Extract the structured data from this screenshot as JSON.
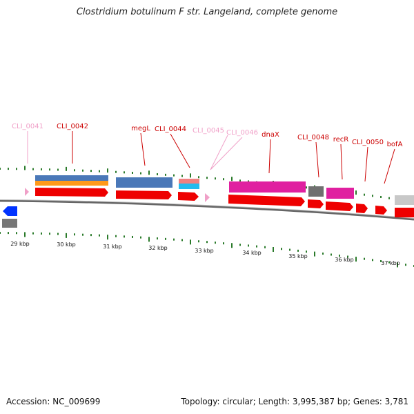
{
  "title": "Clostridium botulinum F str. Langeland, complete genome",
  "accession": "Accession: NC_009699",
  "summary": "Topology: circular; Length: 3,995,387 bp; Genes: 3,781",
  "colors": {
    "backbone": "#888888",
    "cds": "#ff0000",
    "pseudo_label": "#f0a0c8",
    "label": "#cc0000",
    "tick": "#2a7a2a",
    "blue_strand": "#0000ff",
    "gray_feature": "#777777"
  },
  "scale": {
    "unit": "kbp",
    "ticks": [
      {
        "label": "29 kbp"
      },
      {
        "label": "30 kbp"
      },
      {
        "label": "31 kbp"
      },
      {
        "label": "32 kbp"
      },
      {
        "label": "33 kbp"
      },
      {
        "label": "34 kbp"
      },
      {
        "label": "35 kbp"
      },
      {
        "label": "36 kbp"
      },
      {
        "label": "37 kbp"
      }
    ]
  },
  "genes": [
    {
      "label": "CLI_0041",
      "pseudo": true
    },
    {
      "label": "CLI_0042",
      "pseudo": false
    },
    {
      "label": "megL",
      "pseudo": false
    },
    {
      "label": "CLI_0044",
      "pseudo": false
    },
    {
      "label": "CLI_0045",
      "pseudo": true
    },
    {
      "label": "CLI_0046",
      "pseudo": true
    },
    {
      "label": "dnaX",
      "pseudo": false
    },
    {
      "label": "CLI_0048",
      "pseudo": false
    },
    {
      "label": "recR",
      "pseudo": false
    },
    {
      "label": "CLI_0050",
      "pseudo": false
    },
    {
      "label": "bofA",
      "pseudo": false
    }
  ]
}
